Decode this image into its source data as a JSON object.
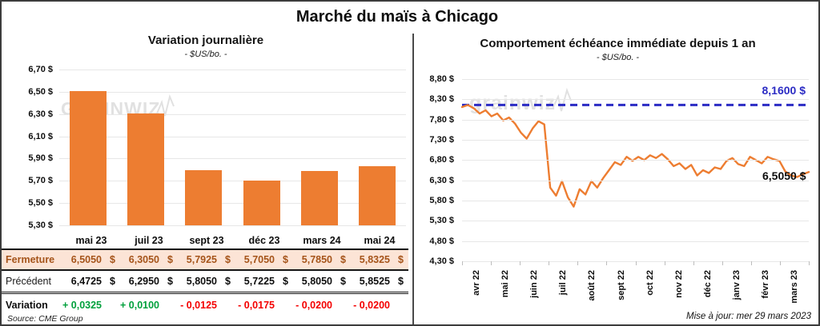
{
  "title": "Marché du maïs à Chicago",
  "watermark": {
    "text": "grainwiz"
  },
  "colors": {
    "bar_orange": "#ED7D31",
    "line_orange": "#ED7D31",
    "reference_blue": "#2c2cc4",
    "close_row_bg": "#FCE4D6",
    "close_text_brown": "#a5541a",
    "positive_green": "#00a03c",
    "negative_red": "#f40000",
    "gridline": "#e7e7e7",
    "frame_border": "#3c3c3c"
  },
  "table": {
    "columns": [
      "mai 23",
      "juil 23",
      "sept 23",
      "déc 23",
      "mars 24",
      "mai 24"
    ],
    "rows": [
      {
        "type": "close",
        "label": "Fermeture",
        "currency": "$",
        "values": [
          "6,5050",
          "6,3050",
          "5,7925",
          "5,7050",
          "5,7850",
          "5,8325"
        ]
      },
      {
        "type": "previous",
        "label": "Précédent",
        "currency": "$",
        "values": [
          "6,4725",
          "6,2950",
          "5,8050",
          "5,7225",
          "5,8050",
          "5,8525"
        ]
      },
      {
        "type": "change",
        "label": "Variation",
        "currency": "",
        "values": [
          "+ 0,0325",
          "+ 0,0100",
          "- 0,0125",
          "- 0,0175",
          "- 0,0200",
          "- 0,0200"
        ]
      }
    ]
  },
  "footer": {
    "source": "Source: CME Group",
    "updated": "Mise à jour: mer 29 mars 2023"
  },
  "chart_data": [
    {
      "type": "bar",
      "title": "Variation journalière",
      "subtitle": "- $US/bo. -",
      "categories": [
        "mai 23",
        "juil 23",
        "sept 23",
        "déc 23",
        "mars 24",
        "mai 24"
      ],
      "values": [
        6.505,
        6.305,
        5.7925,
        5.705,
        5.785,
        5.8325
      ],
      "ylim": [
        5.3,
        6.7
      ],
      "yticks": [
        6.7,
        6.5,
        6.3,
        6.1,
        5.9,
        5.7,
        5.5,
        5.3
      ],
      "ytick_labels": [
        "6,70 $",
        "6,50 $",
        "6,30 $",
        "6,10 $",
        "5,90 $",
        "5,70 $",
        "5,50 $",
        "5,30 $"
      ],
      "grid": true,
      "legend": false
    },
    {
      "type": "line",
      "title": "Comportement échéance immédiate depuis 1 an",
      "subtitle": "- $US/bo. -",
      "x_labels": [
        "avr 22",
        "mai 22",
        "juin 22",
        "juil 22",
        "août 22",
        "sept 22",
        "oct 22",
        "nov 22",
        "déc 22",
        "janv 23",
        "févr 23",
        "mars 23"
      ],
      "ylim": [
        4.3,
        8.8
      ],
      "yticks": [
        8.8,
        8.3,
        7.8,
        7.3,
        6.8,
        6.3,
        5.8,
        5.3,
        4.8,
        4.3
      ],
      "ytick_labels": [
        "8,80 $",
        "8,30 $",
        "7,80 $",
        "7,30 $",
        "6,80 $",
        "6,30 $",
        "5,80 $",
        "5,30 $",
        "4,80 $",
        "4,30 $"
      ],
      "series": [
        {
          "name": "échéance immédiate",
          "values": [
            8.11,
            8.16,
            8.08,
            7.95,
            8.03,
            7.88,
            7.95,
            7.78,
            7.85,
            7.7,
            7.48,
            7.33,
            7.58,
            7.76,
            7.68,
            6.12,
            5.92,
            6.28,
            5.88,
            5.65,
            6.08,
            5.95,
            6.28,
            6.12,
            6.35,
            6.55,
            6.75,
            6.68,
            6.88,
            6.78,
            6.88,
            6.8,
            6.92,
            6.85,
            6.95,
            6.82,
            6.65,
            6.72,
            6.58,
            6.68,
            6.42,
            6.55,
            6.48,
            6.62,
            6.58,
            6.78,
            6.85,
            6.7,
            6.65,
            6.88,
            6.8,
            6.72,
            6.88,
            6.82,
            6.78,
            6.52,
            6.42,
            6.38,
            6.45,
            6.505
          ]
        }
      ],
      "reference_line": {
        "value": 8.16,
        "label": "8,1600 $",
        "style": "dashed"
      },
      "last_point_label": "6,5050 $",
      "grid": true,
      "legend": false
    }
  ]
}
